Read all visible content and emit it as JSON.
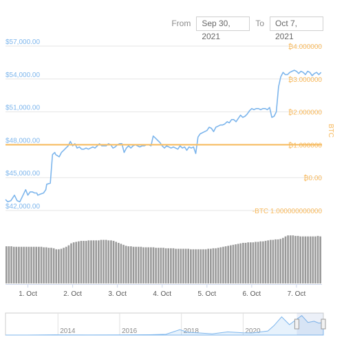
{
  "range": {
    "from_label": "From",
    "from_value": "Sep 30, 2021",
    "to_label": "To",
    "to_value": "Oct 7, 2021"
  },
  "colors": {
    "price_line": "#7cb5ec",
    "btc_line": "#f7c06b",
    "volume_bars": "#9a9a9a",
    "grid": "#e6e6e6",
    "left_axis_text": "#7cb5ec",
    "right_axis_text": "#f7b85a"
  },
  "chart_data": [
    {
      "type": "line",
      "title": "",
      "xlabel": "",
      "ylabel": "",
      "ylim": [
        42000,
        57000
      ],
      "y_ticks": [
        "$57,000.00",
        "$54,000.00",
        "$51,000.00",
        "$48,000.00",
        "$45,000.00",
        "$42,000.00"
      ],
      "y_tick_values": [
        57000,
        54000,
        51000,
        48000,
        45000,
        42000
      ],
      "y2label": "BTC",
      "y2_ticks": [
        "₿4.000000",
        "₿3.000000",
        "₿2.000000",
        "₿1.000000",
        "₿0.00",
        "-BTC 1.000000000000"
      ],
      "y2_tick_values": [
        4,
        3,
        2,
        1,
        0,
        -1
      ],
      "y2lim": [
        -1,
        4
      ],
      "x_ticks": [
        "1. Oct",
        "2. Oct",
        "3. Oct",
        "4. Oct",
        "5. Oct",
        "6. Oct",
        "7. Oct"
      ],
      "x_tick_values": [
        1,
        2,
        3,
        4,
        5,
        6,
        7
      ],
      "xlim": [
        0.5,
        7.57
      ],
      "series": [
        {
          "axis": "left",
          "x": [
            0.5,
            0.55,
            0.62,
            0.7,
            0.76,
            0.82,
            0.88,
            0.95,
            1.0,
            1.05,
            1.1,
            1.15,
            1.2,
            1.22,
            1.28,
            1.35,
            1.4,
            1.42,
            1.5,
            1.55,
            1.6,
            1.62,
            1.7,
            1.75,
            1.8,
            1.85,
            1.9,
            1.95,
            2.0,
            2.05,
            2.1,
            2.15,
            2.2,
            2.25,
            2.3,
            2.35,
            2.4,
            2.45,
            2.5,
            2.55,
            2.6,
            2.65,
            2.7,
            2.75,
            2.8,
            2.85,
            2.9,
            2.95,
            3.0,
            3.05,
            3.1,
            3.15,
            3.2,
            3.25,
            3.3,
            3.35,
            3.4,
            3.45,
            3.5,
            3.55,
            3.6,
            3.65,
            3.7,
            3.75,
            3.8,
            3.85,
            3.9,
            3.95,
            4.0,
            4.05,
            4.1,
            4.15,
            4.2,
            4.25,
            4.3,
            4.35,
            4.4,
            4.45,
            4.5,
            4.55,
            4.6,
            4.65,
            4.7,
            4.75,
            4.8,
            4.85,
            4.9,
            4.95,
            5.0,
            5.05,
            5.1,
            5.15,
            5.2,
            5.25,
            5.3,
            5.35,
            5.4,
            5.45,
            5.5,
            5.55,
            5.6,
            5.65,
            5.7,
            5.75,
            5.8,
            5.85,
            5.9,
            5.95,
            6.0,
            6.05,
            6.1,
            6.15,
            6.2,
            6.25,
            6.3,
            6.35,
            6.4,
            6.45,
            6.5,
            6.55,
            6.6,
            6.65,
            6.7,
            6.75,
            6.8,
            6.85,
            6.9,
            6.95,
            7.0,
            7.05,
            7.1,
            7.15,
            7.2,
            7.25,
            7.3,
            7.35,
            7.4,
            7.45,
            7.5,
            7.55
          ],
          "values": [
            43000,
            42800,
            42900,
            43400,
            42900,
            42800,
            43300,
            43900,
            43400,
            43700,
            43700,
            43600,
            43600,
            43400,
            43500,
            43600,
            43900,
            44400,
            44500,
            47100,
            47300,
            47100,
            46900,
            47300,
            47500,
            47700,
            47900,
            48300,
            47900,
            48100,
            47700,
            47800,
            47600,
            47600,
            47700,
            47600,
            47700,
            47800,
            47700,
            47900,
            48100,
            47900,
            47900,
            47900,
            48100,
            48000,
            47700,
            47800,
            48000,
            48100,
            48100,
            47300,
            47700,
            47900,
            47700,
            47900,
            48000,
            47900,
            47800,
            47900,
            47900,
            48000,
            48000,
            47900,
            48800,
            48600,
            48400,
            48200,
            47900,
            47700,
            47900,
            47800,
            47700,
            47800,
            47700,
            47600,
            47900,
            47700,
            47800,
            47500,
            47800,
            47700,
            47800,
            47200,
            48700,
            49000,
            49100,
            49200,
            49300,
            49600,
            49500,
            49200,
            49600,
            49700,
            49800,
            49800,
            49900,
            50100,
            50000,
            50300,
            50300,
            50100,
            50400,
            50700,
            50500,
            50600,
            50800,
            51100,
            51300,
            51200,
            51300,
            51300,
            51200,
            51300,
            51300,
            51200,
            51400,
            50500,
            50600,
            51000,
            53300,
            54200,
            54600,
            54400,
            54400,
            54600,
            54700,
            54800,
            54700,
            54500,
            54700,
            54600,
            54400,
            54700,
            54600,
            54300,
            54500,
            54600,
            54400,
            54600
          ]
        },
        {
          "axis": "right",
          "x": [
            0.5,
            7.57
          ],
          "values": [
            1,
            1
          ]
        }
      ]
    },
    {
      "type": "bar",
      "title": "",
      "xlabel": "",
      "ylabel": "",
      "ylim": [
        0,
        1
      ],
      "values": [
        0.75,
        0.75,
        0.75,
        0.74,
        0.74,
        0.74,
        0.74,
        0.74,
        0.74,
        0.74,
        0.74,
        0.74,
        0.74,
        0.74,
        0.74,
        0.73,
        0.73,
        0.72,
        0.72,
        0.71,
        0.69,
        0.69,
        0.7,
        0.72,
        0.74,
        0.77,
        0.81,
        0.83,
        0.84,
        0.85,
        0.86,
        0.86,
        0.86,
        0.87,
        0.87,
        0.87,
        0.87,
        0.87,
        0.88,
        0.88,
        0.88,
        0.87,
        0.87,
        0.86,
        0.84,
        0.82,
        0.8,
        0.78,
        0.76,
        0.75,
        0.75,
        0.74,
        0.74,
        0.74,
        0.74,
        0.73,
        0.73,
        0.73,
        0.73,
        0.73,
        0.72,
        0.72,
        0.72,
        0.72,
        0.71,
        0.71,
        0.71,
        0.71,
        0.7,
        0.7,
        0.7,
        0.7,
        0.7,
        0.7,
        0.69,
        0.69,
        0.69,
        0.69,
        0.69,
        0.69,
        0.69,
        0.7,
        0.7,
        0.71,
        0.71,
        0.72,
        0.73,
        0.74,
        0.75,
        0.76,
        0.77,
        0.78,
        0.79,
        0.8,
        0.81,
        0.82,
        0.82,
        0.83,
        0.83,
        0.83,
        0.84,
        0.84,
        0.85,
        0.85,
        0.86,
        0.87,
        0.88,
        0.88,
        0.89,
        0.89,
        0.9,
        0.92,
        0.95,
        0.97,
        0.97,
        0.97,
        0.96,
        0.96,
        0.95,
        0.95,
        0.95,
        0.95,
        0.95,
        0.95,
        0.95,
        0.96,
        0.95
      ]
    },
    {
      "type": "area",
      "title": "",
      "xlabel": "",
      "ylabel": "",
      "x_ticks": [
        "2014",
        "2016",
        "2018",
        "2020"
      ],
      "x_tick_values": [
        2014,
        2016,
        2018,
        2020
      ],
      "xlim": [
        2012.3,
        2022.6
      ],
      "ylim": [
        0,
        70000
      ],
      "x": [
        2012.3,
        2013.0,
        2013.9,
        2014.2,
        2015.0,
        2016.0,
        2017.0,
        2017.5,
        2017.95,
        2018.2,
        2018.6,
        2019.0,
        2019.5,
        2020.0,
        2020.3,
        2020.8,
        2021.0,
        2021.25,
        2021.5,
        2021.7,
        2021.9,
        2022.1,
        2022.3,
        2022.45,
        2022.6
      ],
      "values": [
        10,
        100,
        900,
        500,
        250,
        420,
        1000,
        2500,
        17000,
        9000,
        6500,
        3800,
        10000,
        7200,
        6500,
        13000,
        30000,
        58000,
        33000,
        48000,
        62000,
        40000,
        44000,
        38000,
        40000
      ]
    }
  ]
}
